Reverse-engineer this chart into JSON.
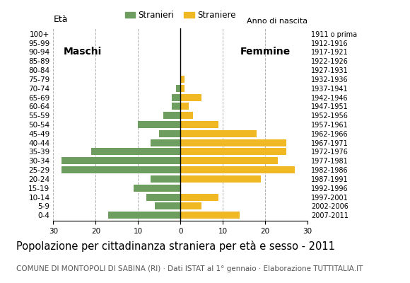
{
  "age_groups": [
    "0-4",
    "5-9",
    "10-14",
    "15-19",
    "20-24",
    "25-29",
    "30-34",
    "35-39",
    "40-44",
    "45-49",
    "50-54",
    "55-59",
    "60-64",
    "65-69",
    "70-74",
    "75-79",
    "80-84",
    "85-89",
    "90-94",
    "95-99",
    "100+"
  ],
  "birth_years": [
    "2007-2011",
    "2002-2006",
    "1997-2001",
    "1992-1996",
    "1987-1991",
    "1982-1986",
    "1977-1981",
    "1972-1976",
    "1967-1971",
    "1962-1966",
    "1957-1961",
    "1952-1956",
    "1947-1951",
    "1942-1946",
    "1937-1941",
    "1932-1936",
    "1927-1931",
    "1922-1926",
    "1917-1921",
    "1912-1916",
    "1911 o prima"
  ],
  "males": [
    17,
    6,
    8,
    11,
    7,
    28,
    28,
    21,
    7,
    5,
    10,
    4,
    2,
    2,
    1,
    0,
    0,
    0,
    0,
    0,
    0
  ],
  "females": [
    14,
    5,
    9,
    0,
    19,
    27,
    23,
    25,
    25,
    18,
    9,
    3,
    2,
    5,
    1,
    1,
    0,
    0,
    0,
    0,
    0
  ],
  "male_color": "#6e9e5f",
  "female_color": "#f0b823",
  "grid_color": "#aaaaaa",
  "title": "Popolazione per cittadinanza straniera per età e sesso - 2011",
  "subtitle": "COMUNE DI MONTOPOLI DI SABINA (RI) · Dati ISTAT al 1° gennaio · Elaborazione TUTTITALIA.IT",
  "ylabel_left": "Età",
  "ylabel_right": "Anno di nascita",
  "legend_male": "Stranieri",
  "legend_female": "Straniere",
  "label_maschi": "Maschi",
  "label_femmine": "Femmine",
  "xlim": 30,
  "title_fontsize": 10.5,
  "subtitle_fontsize": 7.5,
  "tick_fontsize": 7.5,
  "label_fontsize": 9
}
